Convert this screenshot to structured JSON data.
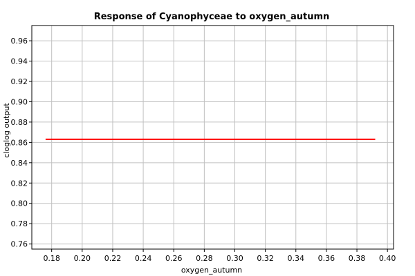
{
  "chart_data": {
    "type": "line",
    "title": "Response of Cyanophyceae to oxygen_autumn",
    "xlabel": "oxygen_autumn",
    "ylabel": "cloglog output",
    "xlim": [
      0.167,
      0.404
    ],
    "ylim": [
      0.755,
      0.975
    ],
    "grid": true,
    "x_ticks": [
      "0.18",
      "0.20",
      "0.22",
      "0.24",
      "0.26",
      "0.28",
      "0.30",
      "0.32",
      "0.34",
      "0.36",
      "0.38",
      "0.40"
    ],
    "y_ticks": [
      "0.76",
      "0.78",
      "0.80",
      "0.82",
      "0.84",
      "0.86",
      "0.88",
      "0.90",
      "0.92",
      "0.94",
      "0.96"
    ],
    "series": [
      {
        "color": "#ff0000",
        "x": [
          0.176,
          0.392
        ],
        "y": [
          0.863,
          0.863
        ]
      }
    ]
  }
}
